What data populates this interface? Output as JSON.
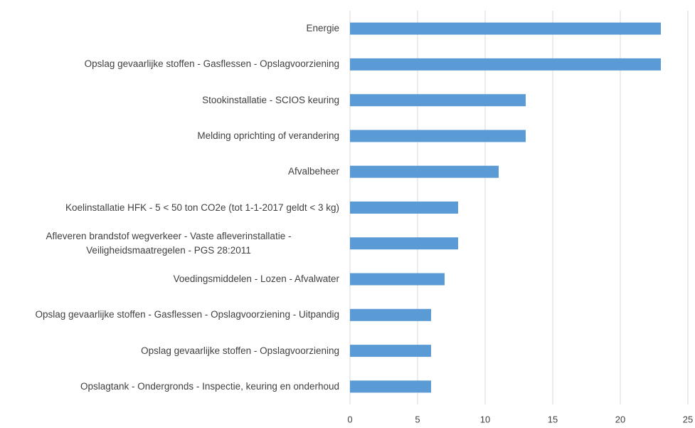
{
  "chart_data": {
    "type": "bar",
    "orientation": "horizontal",
    "categories": [
      "Energie",
      "Opslag gevaarlijke stoffen - Gasflessen - Opslagvoorziening",
      "Stookinstallatie - SCIOS keuring",
      "Melding oprichting of verandering",
      "Afvalbeheer",
      "Koelinstallatie HFK - 5 < 50 ton CO2e (tot 1-1-2017 geldt < 3 kg)",
      "Afleveren brandstof wegverkeer - Vaste afleverinstallatie - Veiligheidsmaatregelen - PGS 28:2011",
      "Voedingsmiddelen - Lozen - Afvalwater",
      "Opslag gevaarlijke stoffen - Gasflessen - Opslagvoorziening - Uitpandig",
      "Opslag gevaarlijke stoffen - Opslagvoorziening",
      "Opslagtank - Ondergronds - Inspectie, keuring en onderhoud"
    ],
    "values": [
      23,
      23,
      13,
      13,
      11,
      8,
      8,
      7,
      6,
      6,
      6
    ],
    "color": "#5b9bd5",
    "xlim": [
      0,
      25
    ],
    "xticks": [
      0,
      5,
      10,
      15,
      20,
      25
    ],
    "grid": true
  }
}
